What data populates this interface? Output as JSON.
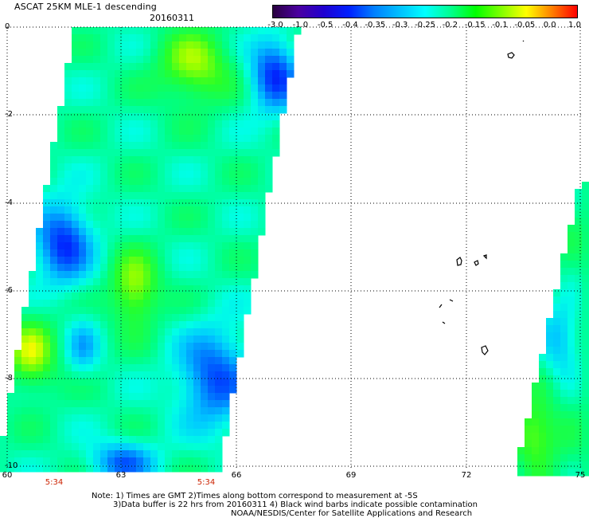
{
  "header": {
    "title": "ASCAT 25KM MLE-1 descending",
    "date": "20160311"
  },
  "colorbar": {
    "labels": [
      "-3.0",
      "-1.0",
      "-0.5",
      "-0.4",
      "-0.35",
      "-0.3",
      "-0.25",
      "-0.2",
      "-0.15",
      "-0.1",
      "-0.05",
      "0.0",
      "1.0"
    ],
    "colors": [
      "#2a0040",
      "#4a00a0",
      "#2000d0",
      "#0020ff",
      "#0080ff",
      "#00c0ff",
      "#00ffff",
      "#00ff90",
      "#00ff00",
      "#80ff00",
      "#ffff00",
      "#ff8000",
      "#ff0000"
    ]
  },
  "axes": {
    "y_labels": [
      "0",
      "-2",
      "-4",
      "-6",
      "-8",
      "-10"
    ],
    "x_labels": [
      "60",
      "63",
      "66",
      "69",
      "72",
      "75"
    ],
    "times": [
      "5:34",
      "5:34"
    ]
  },
  "notes": {
    "line1": "Note: 1) Times are GMT 2)Times along bottom correspond to measurement at -5S",
    "line2": "3)Data buffer is 22 hrs from 20160311 4) Black wind barbs indicate possible contamination",
    "line3": "NOAA/NESDIS/Center for Satellite Applications and Research"
  }
}
